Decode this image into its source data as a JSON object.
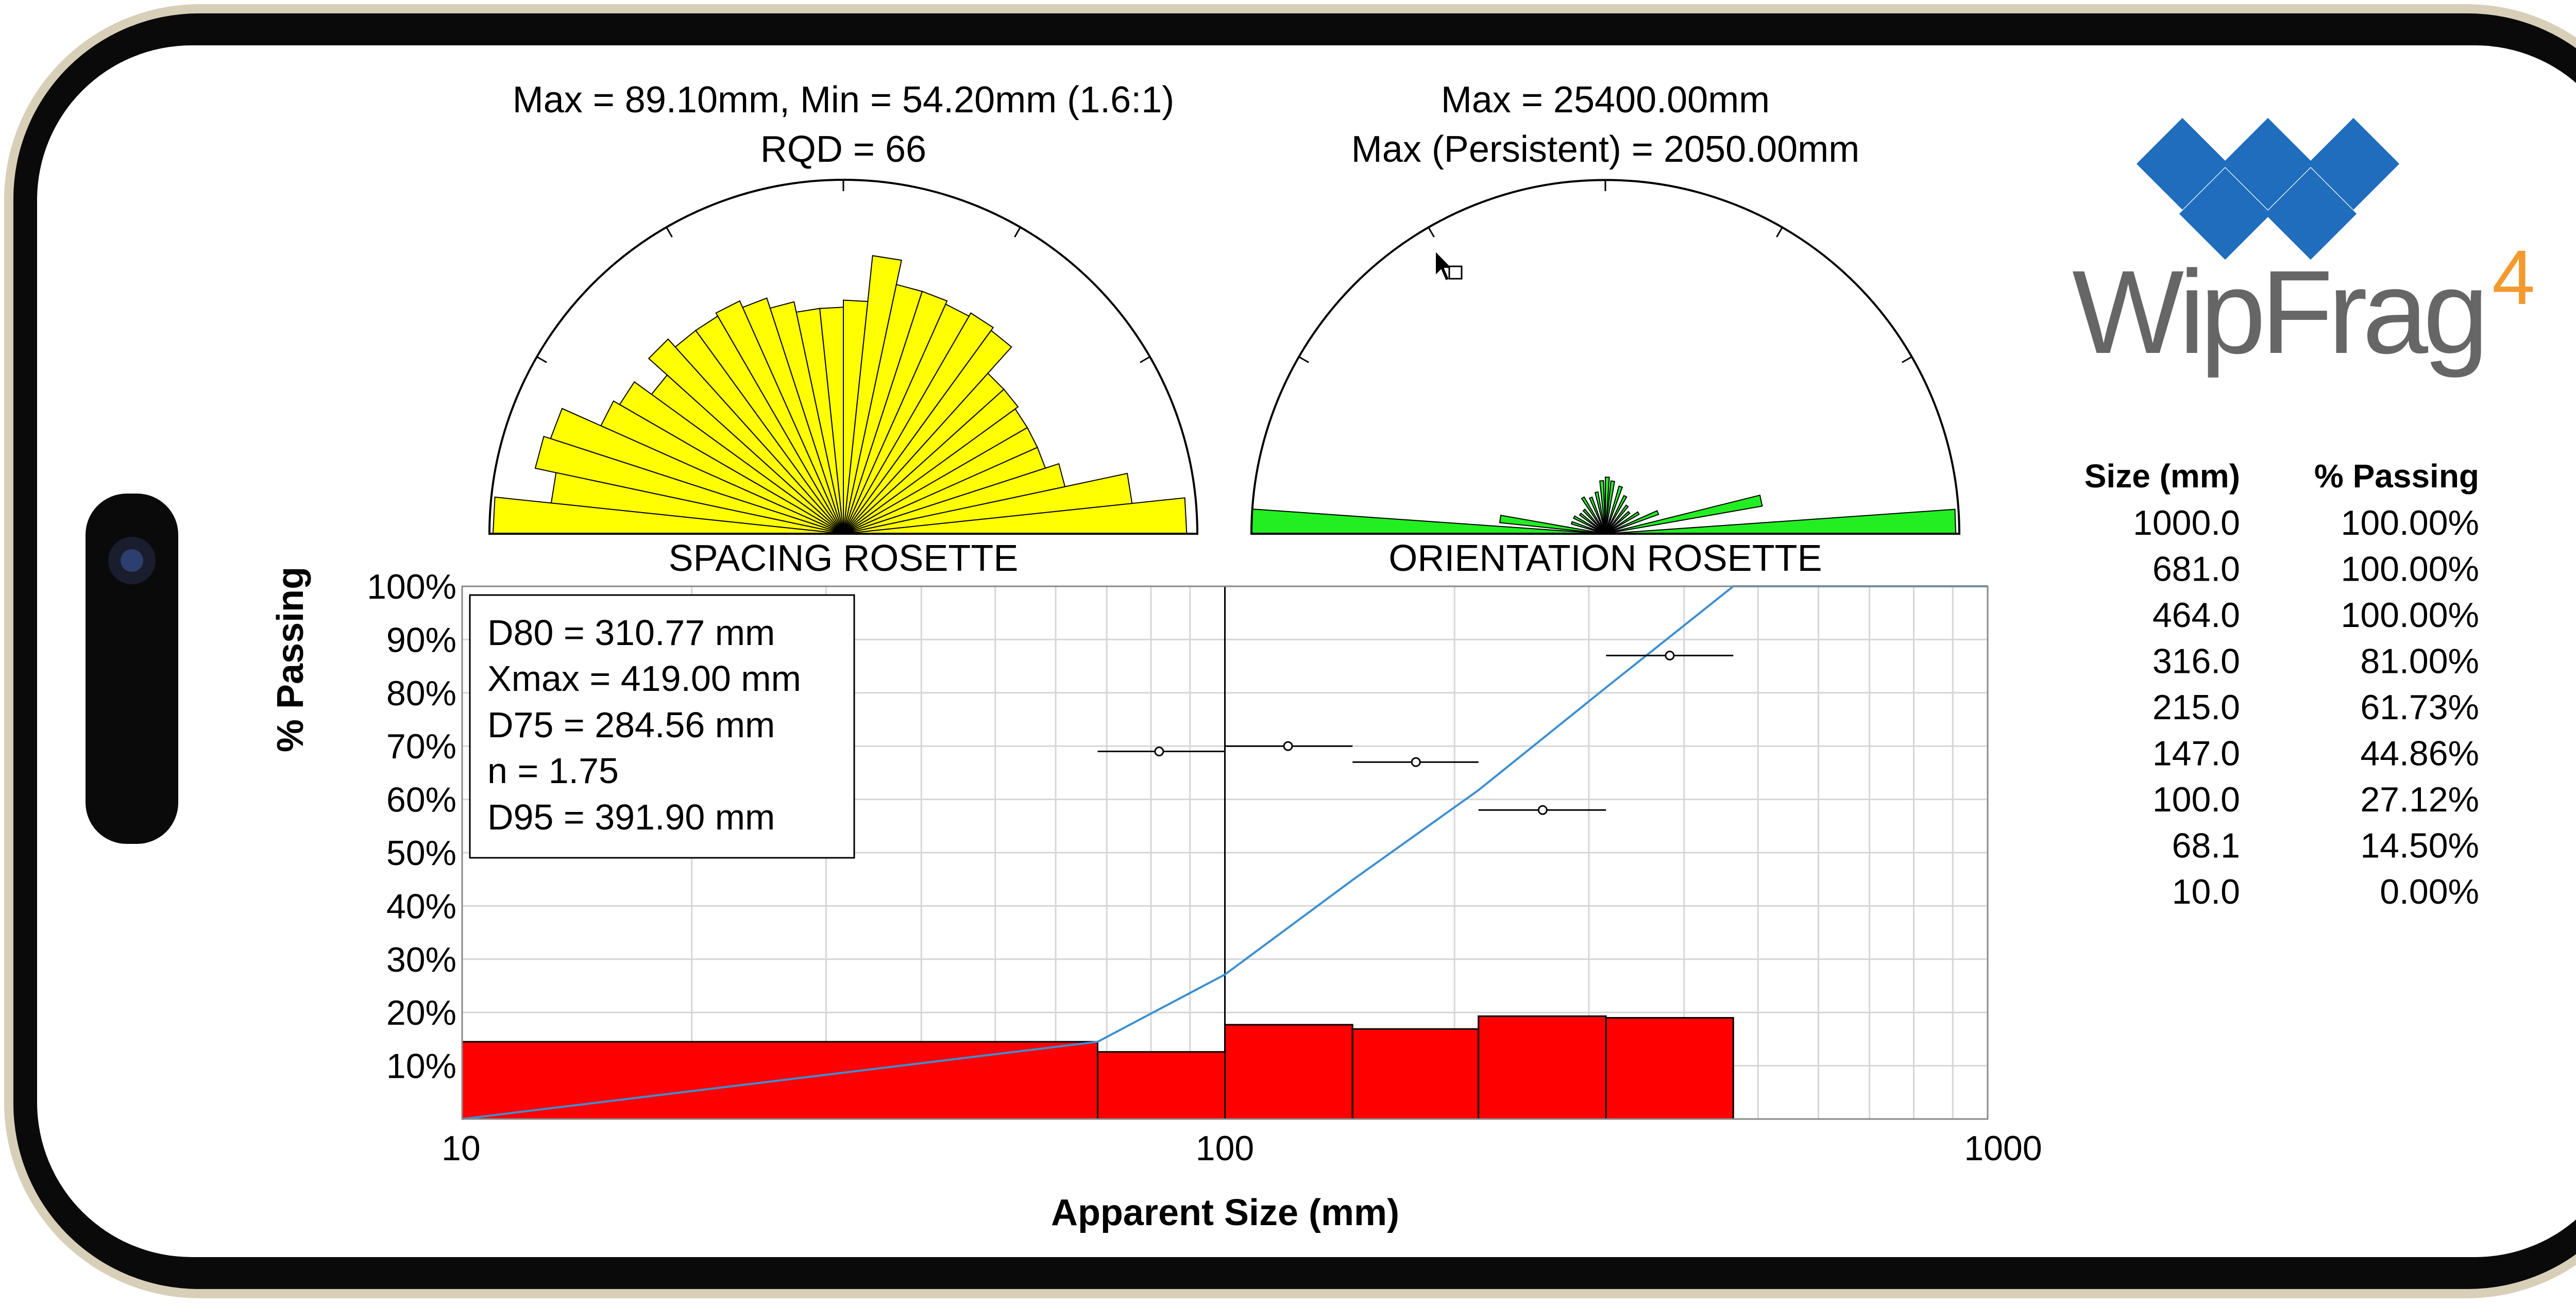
{
  "spacing_rosette": {
    "line1": "Max = 89.10mm, Min = 54.20mm (1.6:1)",
    "line2": "RQD = 66",
    "label": "SPACING ROSETTE",
    "fill_color": "#ffff00",
    "petals": [
      {
        "angle_deg": 0,
        "value": 0.97
      },
      {
        "angle_deg": 6,
        "value": 0.82
      },
      {
        "angle_deg": 12,
        "value": 0.64
      },
      {
        "angle_deg": 18,
        "value": 0.6
      },
      {
        "angle_deg": 24,
        "value": 0.6
      },
      {
        "angle_deg": 30,
        "value": 0.6
      },
      {
        "angle_deg": 36,
        "value": 0.61
      },
      {
        "angle_deg": 42,
        "value": 0.61
      },
      {
        "angle_deg": 48,
        "value": 0.71
      },
      {
        "angle_deg": 54,
        "value": 0.72
      },
      {
        "angle_deg": 60,
        "value": 0.71
      },
      {
        "angle_deg": 66,
        "value": 0.72
      },
      {
        "angle_deg": 72,
        "value": 0.72
      },
      {
        "angle_deg": 78,
        "value": 0.79
      },
      {
        "angle_deg": 84,
        "value": 0.66
      },
      {
        "angle_deg": 90,
        "value": 0.64
      },
      {
        "angle_deg": 96,
        "value": 0.64
      },
      {
        "angle_deg": 102,
        "value": 0.67
      },
      {
        "angle_deg": 108,
        "value": 0.7
      },
      {
        "angle_deg": 114,
        "value": 0.72
      },
      {
        "angle_deg": 120,
        "value": 0.71
      },
      {
        "angle_deg": 126,
        "value": 0.71
      },
      {
        "angle_deg": 132,
        "value": 0.74
      },
      {
        "angle_deg": 138,
        "value": 0.67
      },
      {
        "angle_deg": 144,
        "value": 0.73
      },
      {
        "angle_deg": 150,
        "value": 0.75
      },
      {
        "angle_deg": 156,
        "value": 0.87
      },
      {
        "angle_deg": 162,
        "value": 0.89
      },
      {
        "angle_deg": 168,
        "value": 0.83
      },
      {
        "angle_deg": 174,
        "value": 0.99
      }
    ]
  },
  "orientation_rosette": {
    "line1": "Max = 25400.00mm",
    "line2": "Max (Persistent) = 2050.00mm",
    "label": "ORIENTATION ROSETTE",
    "fill_color": "#22ee22",
    "petals": [
      {
        "angle_deg": 0,
        "value": 0.99
      },
      {
        "angle_deg": 10,
        "value": 0.45
      },
      {
        "angle_deg": 20,
        "value": 0.16
      },
      {
        "angle_deg": 30,
        "value": 0.11
      },
      {
        "angle_deg": 40,
        "value": 0.09
      },
      {
        "angle_deg": 50,
        "value": 0.1
      },
      {
        "angle_deg": 60,
        "value": 0.12
      },
      {
        "angle_deg": 70,
        "value": 0.14
      },
      {
        "angle_deg": 80,
        "value": 0.15
      },
      {
        "angle_deg": 86,
        "value": 0.16
      },
      {
        "angle_deg": 92,
        "value": 0.15
      },
      {
        "angle_deg": 100,
        "value": 0.12
      },
      {
        "angle_deg": 110,
        "value": 0.11
      },
      {
        "angle_deg": 120,
        "value": 0.12
      },
      {
        "angle_deg": 130,
        "value": 0.09
      },
      {
        "angle_deg": 140,
        "value": 0.09
      },
      {
        "angle_deg": 150,
        "value": 0.1
      },
      {
        "angle_deg": 160,
        "value": 0.1
      },
      {
        "angle_deg": 170,
        "value": 0.3
      },
      {
        "angle_deg": 176,
        "value": 1.0
      }
    ]
  },
  "chart_data": {
    "type": "bar",
    "x_scale": "log",
    "xlim": [
      10,
      1000
    ],
    "ylim": [
      0,
      100
    ],
    "xlabel": "Apparent Size (mm)",
    "ylabel": "% Passing",
    "x_tick_labels": [
      "10",
      "100",
      "1000"
    ],
    "y_tick_labels": [
      "10%",
      "20%",
      "30%",
      "40%",
      "50%",
      "60%",
      "70%",
      "80%",
      "90%",
      "100%"
    ],
    "grid": true,
    "bar_color": "#ff0000",
    "line_color": "#3c8ed0",
    "histogram": [
      {
        "x0": 10.0,
        "x1": 68.1,
        "value": 14.5
      },
      {
        "x0": 68.1,
        "x1": 100.0,
        "value": 12.6
      },
      {
        "x0": 100.0,
        "x1": 147.0,
        "value": 17.7
      },
      {
        "x0": 147.0,
        "x1": 215.0,
        "value": 16.9
      },
      {
        "x0": 215.0,
        "x1": 316.0,
        "value": 19.3
      },
      {
        "x0": 316.0,
        "x1": 464.0,
        "value": 19.0
      }
    ],
    "cumulative_passing": {
      "x": [
        10.0,
        68.1,
        100.0,
        147.0,
        215.0,
        316.0,
        464.0,
        681.0,
        1000.0
      ],
      "y": [
        0.0,
        14.5,
        27.12,
        44.86,
        61.73,
        81.0,
        100.0,
        100.0,
        100.0
      ]
    },
    "error_bars": [
      {
        "x": 82.0,
        "x_low": 68.1,
        "x_high": 100.0,
        "y": 69.0
      },
      {
        "x": 121.0,
        "x_low": 100.0,
        "x_high": 147.0,
        "y": 70.0
      },
      {
        "x": 178.0,
        "x_low": 147.0,
        "x_high": 215.0,
        "y": 67.0
      },
      {
        "x": 261.0,
        "x_low": 215.0,
        "x_high": 316.0,
        "y": 58.0
      },
      {
        "x": 383.0,
        "x_low": 316.0,
        "x_high": 464.0,
        "y": 87.0
      }
    ],
    "vertical_marker_x": 100.0,
    "stats": [
      "D80 = 310.77 mm",
      "Xmax = 419.00 mm",
      "D75 = 284.56 mm",
      "n = 1.75",
      "D95 = 391.90 mm"
    ]
  },
  "logo": {
    "text_main": "WipFrag",
    "text_super": "4",
    "diamond_color": "#1f6dbc",
    "text_color": "#666666",
    "super_color": "#f29a2e"
  },
  "size_table": {
    "headers": [
      "Size (mm)",
      "% Passing"
    ],
    "rows": [
      [
        "1000.0",
        "100.00%"
      ],
      [
        "681.0",
        "100.00%"
      ],
      [
        "464.0",
        "100.00%"
      ],
      [
        "316.0",
        "81.00%"
      ],
      [
        "215.0",
        "61.73%"
      ],
      [
        "147.0",
        "44.86%"
      ],
      [
        "100.0",
        "27.12%"
      ],
      [
        "68.1",
        "14.50%"
      ],
      [
        "10.0",
        "0.00%"
      ]
    ]
  },
  "frame_color": "#0a0a0a",
  "bezel_color": "#d8cfb8"
}
